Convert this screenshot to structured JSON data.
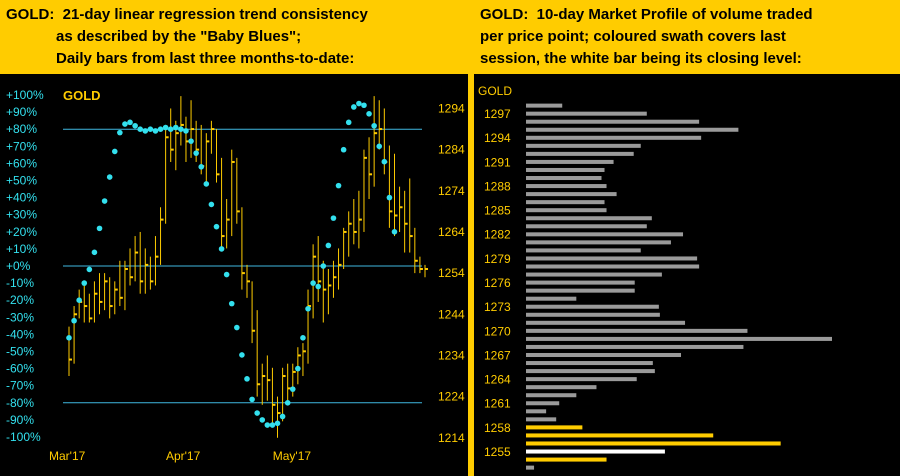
{
  "left_header": {
    "lines": [
      "GOLD:  21-day linear regression trend consistency",
      "            as described by the \"Baby Blues\";",
      "            Daily bars from last three months-to-date:"
    ]
  },
  "right_header": {
    "lines": [
      "GOLD:  10-day Market Profile of volume traded",
      "per price point; coloured swath covers last",
      "session, the white bar being its closing level:"
    ]
  },
  "colors": {
    "header_bg": "#ffcc00",
    "gold": "#ffcc00",
    "cyan": "#33e0ee",
    "gray": "#9a9a9a",
    "white": "#ffffff",
    "line": "#3fb8e0"
  },
  "chart_data": [
    {
      "type": "bar",
      "subtype": "ohlc-with-regression-dots",
      "label": "GOLD",
      "left_axis": {
        "ticks": [
          "+100%",
          "+90%",
          "+80%",
          "+70%",
          "+60%",
          "+50%",
          "+40%",
          "+30%",
          "+20%",
          "+10%",
          "+0%",
          "-10%",
          "-20%",
          "-30%",
          "-40%",
          "-50%",
          "-60%",
          "-70%",
          "-80%",
          "-90%",
          "-100%"
        ],
        "range": [
          -100,
          100
        ]
      },
      "right_axis": {
        "ticks": [
          1294,
          1284,
          1274,
          1264,
          1254,
          1244,
          1234,
          1224,
          1214
        ],
        "range": [
          1212,
          1298
        ]
      },
      "x_labels": [
        {
          "label": "Mar'17",
          "index": 0
        },
        {
          "label": "Apr'17",
          "index": 23
        },
        {
          "label": "May'17",
          "index": 44
        }
      ],
      "reference_lines_pct": [
        80,
        0,
        -80
      ],
      "bars": [
        {
          "o": 1238,
          "h": 1241,
          "l": 1229,
          "c": 1233
        },
        {
          "o": 1233,
          "h": 1246,
          "l": 1232,
          "c": 1244
        },
        {
          "o": 1244,
          "h": 1250,
          "l": 1243,
          "c": 1247
        },
        {
          "o": 1247,
          "h": 1251,
          "l": 1242,
          "c": 1246
        },
        {
          "o": 1246,
          "h": 1249,
          "l": 1242,
          "c": 1243
        },
        {
          "o": 1243,
          "h": 1252,
          "l": 1242,
          "c": 1249
        },
        {
          "o": 1249,
          "h": 1254,
          "l": 1244,
          "c": 1247
        },
        {
          "o": 1247,
          "h": 1254,
          "l": 1245,
          "c": 1252
        },
        {
          "o": 1252,
          "h": 1253,
          "l": 1243,
          "c": 1246
        },
        {
          "o": 1246,
          "h": 1252,
          "l": 1244,
          "c": 1250
        },
        {
          "o": 1250,
          "h": 1257,
          "l": 1246,
          "c": 1248
        },
        {
          "o": 1248,
          "h": 1257,
          "l": 1245,
          "c": 1255
        },
        {
          "o": 1255,
          "h": 1260,
          "l": 1251,
          "c": 1253
        },
        {
          "o": 1253,
          "h": 1263,
          "l": 1252,
          "c": 1259
        },
        {
          "o": 1259,
          "h": 1264,
          "l": 1249,
          "c": 1252
        },
        {
          "o": 1252,
          "h": 1260,
          "l": 1249,
          "c": 1256
        },
        {
          "o": 1256,
          "h": 1258,
          "l": 1250,
          "c": 1252
        },
        {
          "o": 1252,
          "h": 1263,
          "l": 1251,
          "c": 1258
        },
        {
          "o": 1258,
          "h": 1270,
          "l": 1256,
          "c": 1267
        },
        {
          "o": 1267,
          "h": 1290,
          "l": 1266,
          "c": 1287
        },
        {
          "o": 1287,
          "h": 1294,
          "l": 1281,
          "c": 1284
        },
        {
          "o": 1284,
          "h": 1291,
          "l": 1279,
          "c": 1288
        },
        {
          "o": 1288,
          "h": 1297,
          "l": 1285,
          "c": 1290
        },
        {
          "o": 1290,
          "h": 1292,
          "l": 1281,
          "c": 1286
        },
        {
          "o": 1286,
          "h": 1296,
          "l": 1282,
          "c": 1289
        },
        {
          "o": 1289,
          "h": 1291,
          "l": 1281,
          "c": 1284
        },
        {
          "o": 1284,
          "h": 1290,
          "l": 1278,
          "c": 1280
        },
        {
          "o": 1280,
          "h": 1288,
          "l": 1276,
          "c": 1286
        },
        {
          "o": 1286,
          "h": 1291,
          "l": 1283,
          "c": 1289
        },
        {
          "o": 1289,
          "h": 1289,
          "l": 1276,
          "c": 1278
        },
        {
          "o": 1278,
          "h": 1282,
          "l": 1260,
          "c": 1263
        },
        {
          "o": 1263,
          "h": 1272,
          "l": 1260,
          "c": 1267
        },
        {
          "o": 1267,
          "h": 1284,
          "l": 1263,
          "c": 1281
        },
        {
          "o": 1281,
          "h": 1282,
          "l": 1266,
          "c": 1269
        },
        {
          "o": 1269,
          "h": 1270,
          "l": 1250,
          "c": 1254
        },
        {
          "o": 1254,
          "h": 1256,
          "l": 1248,
          "c": 1252
        },
        {
          "o": 1252,
          "h": 1252,
          "l": 1237,
          "c": 1240
        },
        {
          "o": 1240,
          "h": 1245,
          "l": 1224,
          "c": 1227
        },
        {
          "o": 1227,
          "h": 1232,
          "l": 1222,
          "c": 1229
        },
        {
          "o": 1229,
          "h": 1234,
          "l": 1223,
          "c": 1228
        },
        {
          "o": 1228,
          "h": 1231,
          "l": 1217,
          "c": 1222
        },
        {
          "o": 1222,
          "h": 1224,
          "l": 1214,
          "c": 1220
        },
        {
          "o": 1220,
          "h": 1231,
          "l": 1218,
          "c": 1229
        },
        {
          "o": 1229,
          "h": 1232,
          "l": 1222,
          "c": 1226
        },
        {
          "o": 1226,
          "h": 1232,
          "l": 1224,
          "c": 1230
        },
        {
          "o": 1230,
          "h": 1236,
          "l": 1227,
          "c": 1234
        },
        {
          "o": 1234,
          "h": 1237,
          "l": 1229,
          "c": 1235
        },
        {
          "o": 1235,
          "h": 1250,
          "l": 1232,
          "c": 1246
        },
        {
          "o": 1246,
          "h": 1261,
          "l": 1243,
          "c": 1258
        },
        {
          "o": 1258,
          "h": 1263,
          "l": 1247,
          "c": 1252
        },
        {
          "o": 1252,
          "h": 1257,
          "l": 1242,
          "c": 1250
        },
        {
          "o": 1250,
          "h": 1255,
          "l": 1244,
          "c": 1251
        },
        {
          "o": 1251,
          "h": 1257,
          "l": 1248,
          "c": 1253
        },
        {
          "o": 1253,
          "h": 1260,
          "l": 1250,
          "c": 1256
        },
        {
          "o": 1256,
          "h": 1265,
          "l": 1255,
          "c": 1264
        },
        {
          "o": 1264,
          "h": 1269,
          "l": 1258,
          "c": 1266
        },
        {
          "o": 1266,
          "h": 1272,
          "l": 1261,
          "c": 1264
        },
        {
          "o": 1264,
          "h": 1274,
          "l": 1260,
          "c": 1267
        },
        {
          "o": 1267,
          "h": 1284,
          "l": 1264,
          "c": 1282
        },
        {
          "o": 1282,
          "h": 1287,
          "l": 1272,
          "c": 1278
        },
        {
          "o": 1278,
          "h": 1297,
          "l": 1275,
          "c": 1288
        },
        {
          "o": 1288,
          "h": 1296,
          "l": 1284,
          "c": 1289
        },
        {
          "o": 1289,
          "h": 1294,
          "l": 1278,
          "c": 1281
        },
        {
          "o": 1281,
          "h": 1285,
          "l": 1265,
          "c": 1269
        },
        {
          "o": 1269,
          "h": 1283,
          "l": 1263,
          "c": 1268
        },
        {
          "o": 1268,
          "h": 1275,
          "l": 1264,
          "c": 1270
        },
        {
          "o": 1270,
          "h": 1274,
          "l": 1259,
          "c": 1266
        },
        {
          "o": 1266,
          "h": 1277,
          "l": 1259,
          "c": 1263
        },
        {
          "o": 1263,
          "h": 1265,
          "l": 1254,
          "c": 1257
        },
        {
          "o": 1257,
          "h": 1258,
          "l": 1254,
          "c": 1255
        },
        {
          "o": 1255,
          "h": 1256,
          "l": 1253,
          "c": 1255
        }
      ],
      "dots_pct": [
        {
          "i": 0,
          "pct": -42
        },
        {
          "i": 1,
          "pct": -32
        },
        {
          "i": 2,
          "pct": -20
        },
        {
          "i": 3,
          "pct": -10
        },
        {
          "i": 4,
          "pct": -2
        },
        {
          "i": 5,
          "pct": 8
        },
        {
          "i": 6,
          "pct": 22
        },
        {
          "i": 7,
          "pct": 38
        },
        {
          "i": 8,
          "pct": 52
        },
        {
          "i": 9,
          "pct": 67
        },
        {
          "i": 10,
          "pct": 78
        },
        {
          "i": 11,
          "pct": 83
        },
        {
          "i": 12,
          "pct": 84
        },
        {
          "i": 13,
          "pct": 82
        },
        {
          "i": 14,
          "pct": 80
        },
        {
          "i": 15,
          "pct": 79
        },
        {
          "i": 16,
          "pct": 80
        },
        {
          "i": 17,
          "pct": 79
        },
        {
          "i": 18,
          "pct": 80
        },
        {
          "i": 19,
          "pct": 81
        },
        {
          "i": 20,
          "pct": 80
        },
        {
          "i": 21,
          "pct": 81
        },
        {
          "i": 22,
          "pct": 80
        },
        {
          "i": 23,
          "pct": 79
        },
        {
          "i": 24,
          "pct": 73
        },
        {
          "i": 25,
          "pct": 66
        },
        {
          "i": 26,
          "pct": 58
        },
        {
          "i": 27,
          "pct": 48
        },
        {
          "i": 28,
          "pct": 36
        },
        {
          "i": 29,
          "pct": 23
        },
        {
          "i": 30,
          "pct": 10
        },
        {
          "i": 31,
          "pct": -5
        },
        {
          "i": 32,
          "pct": -22
        },
        {
          "i": 33,
          "pct": -36
        },
        {
          "i": 34,
          "pct": -52
        },
        {
          "i": 35,
          "pct": -66
        },
        {
          "i": 36,
          "pct": -78
        },
        {
          "i": 37,
          "pct": -86
        },
        {
          "i": 38,
          "pct": -90
        },
        {
          "i": 39,
          "pct": -93
        },
        {
          "i": 40,
          "pct": -93
        },
        {
          "i": 41,
          "pct": -92
        },
        {
          "i": 42,
          "pct": -88
        },
        {
          "i": 43,
          "pct": -80
        },
        {
          "i": 44,
          "pct": -72
        },
        {
          "i": 45,
          "pct": -60
        },
        {
          "i": 46,
          "pct": -42
        },
        {
          "i": 47,
          "pct": -25
        },
        {
          "i": 48,
          "pct": -10
        },
        {
          "i": 49,
          "pct": -12
        },
        {
          "i": 50,
          "pct": 0
        },
        {
          "i": 51,
          "pct": 12
        },
        {
          "i": 52,
          "pct": 28
        },
        {
          "i": 53,
          "pct": 47
        },
        {
          "i": 54,
          "pct": 68
        },
        {
          "i": 55,
          "pct": 84
        },
        {
          "i": 56,
          "pct": 93
        },
        {
          "i": 57,
          "pct": 95
        },
        {
          "i": 58,
          "pct": 94
        },
        {
          "i": 59,
          "pct": 89
        },
        {
          "i": 60,
          "pct": 82
        },
        {
          "i": 61,
          "pct": 70
        },
        {
          "i": 62,
          "pct": 61
        },
        {
          "i": 63,
          "pct": 40
        },
        {
          "i": 64,
          "pct": 20
        }
      ]
    },
    {
      "type": "bar",
      "subtype": "horizontal-volume-profile",
      "label": "GOLD",
      "price_labels": [
        1297,
        1294,
        1291,
        1288,
        1285,
        1282,
        1279,
        1276,
        1273,
        1270,
        1267,
        1264,
        1261,
        1258,
        1255
      ],
      "price_range": [
        1253.5,
        1298.5
      ],
      "last_session_range": [
        1254,
        1258
      ],
      "close": 1255,
      "profile": [
        {
          "p": 1298,
          "v": 36
        },
        {
          "p": 1297,
          "v": 120
        },
        {
          "p": 1296,
          "v": 172
        },
        {
          "p": 1295,
          "v": 211
        },
        {
          "p": 1294,
          "v": 174
        },
        {
          "p": 1293,
          "v": 114
        },
        {
          "p": 1292,
          "v": 107
        },
        {
          "p": 1291,
          "v": 87
        },
        {
          "p": 1290,
          "v": 78
        },
        {
          "p": 1289,
          "v": 75
        },
        {
          "p": 1288,
          "v": 80
        },
        {
          "p": 1287,
          "v": 90
        },
        {
          "p": 1286,
          "v": 78
        },
        {
          "p": 1285,
          "v": 80
        },
        {
          "p": 1284,
          "v": 125
        },
        {
          "p": 1283,
          "v": 120
        },
        {
          "p": 1282,
          "v": 156
        },
        {
          "p": 1281,
          "v": 144
        },
        {
          "p": 1280,
          "v": 114
        },
        {
          "p": 1279,
          "v": 170
        },
        {
          "p": 1278,
          "v": 172
        },
        {
          "p": 1277,
          "v": 135
        },
        {
          "p": 1276,
          "v": 108
        },
        {
          "p": 1275,
          "v": 108
        },
        {
          "p": 1274,
          "v": 50
        },
        {
          "p": 1273,
          "v": 132
        },
        {
          "p": 1272,
          "v": 133
        },
        {
          "p": 1271,
          "v": 158
        },
        {
          "p": 1270,
          "v": 220
        },
        {
          "p": 1269,
          "v": 304
        },
        {
          "p": 1268,
          "v": 216
        },
        {
          "p": 1267,
          "v": 154
        },
        {
          "p": 1266,
          "v": 126
        },
        {
          "p": 1265,
          "v": 128
        },
        {
          "p": 1264,
          "v": 110
        },
        {
          "p": 1263,
          "v": 70
        },
        {
          "p": 1262,
          "v": 50
        },
        {
          "p": 1261,
          "v": 33
        },
        {
          "p": 1260,
          "v": 20
        },
        {
          "p": 1259,
          "v": 30
        },
        {
          "p": 1258,
          "v": 56
        },
        {
          "p": 1257,
          "v": 186
        },
        {
          "p": 1256,
          "v": 253
        },
        {
          "p": 1255,
          "v": 138
        },
        {
          "p": 1254,
          "v": 80
        },
        {
          "p": 1253,
          "v": 8
        }
      ]
    }
  ]
}
